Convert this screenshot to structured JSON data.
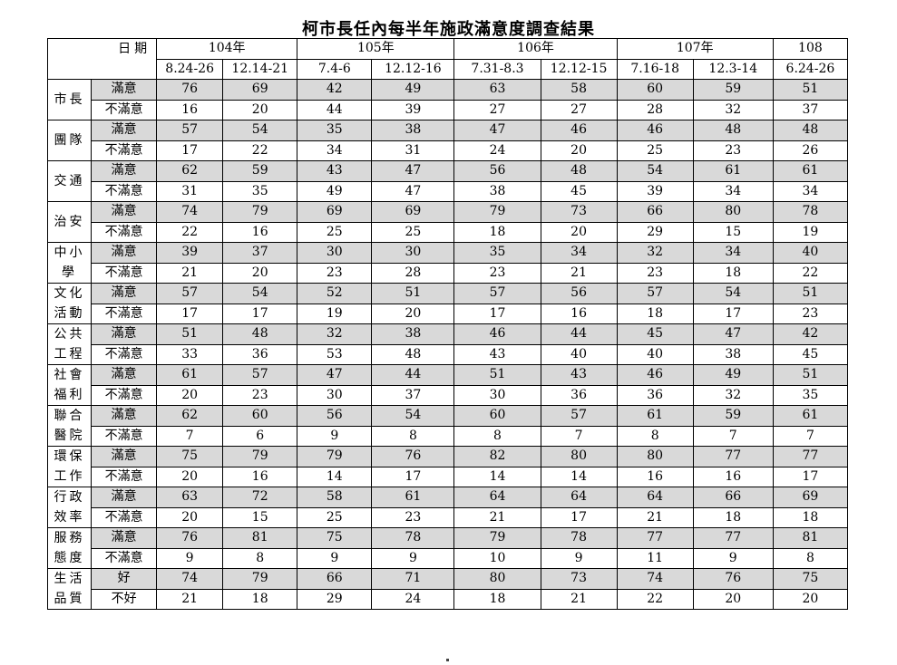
{
  "title": "柯市長任內每半年施政滿意度調查結果",
  "header": {
    "date_label": "日期",
    "years": [
      {
        "label": "104年",
        "span": 2
      },
      {
        "label": "105年",
        "span": 2
      },
      {
        "label": "106年",
        "span": 2
      },
      {
        "label": "107年",
        "span": 2
      },
      {
        "label": "108",
        "span": 1
      }
    ],
    "dates": [
      "8.24-26",
      "12.14-21",
      "7.4-6",
      "12.12-16",
      "7.31-8.3",
      "12.12-15",
      "7.16-18",
      "12.3-14",
      "6.24-26"
    ]
  },
  "categories": [
    {
      "name": "市長",
      "lines": [
        "市長"
      ],
      "rows": [
        {
          "label": "滿意",
          "values": [
            76,
            69,
            42,
            49,
            63,
            58,
            60,
            59,
            51
          ]
        },
        {
          "label": "不滿意",
          "values": [
            16,
            20,
            44,
            39,
            27,
            27,
            28,
            32,
            37
          ]
        }
      ]
    },
    {
      "name": "團隊",
      "lines": [
        "團隊"
      ],
      "rows": [
        {
          "label": "滿意",
          "values": [
            57,
            54,
            35,
            38,
            47,
            46,
            46,
            48,
            48
          ]
        },
        {
          "label": "不滿意",
          "values": [
            17,
            22,
            34,
            31,
            24,
            20,
            25,
            23,
            26
          ]
        }
      ]
    },
    {
      "name": "交通",
      "lines": [
        "交通"
      ],
      "rows": [
        {
          "label": "滿意",
          "values": [
            62,
            59,
            43,
            47,
            56,
            48,
            54,
            61,
            61
          ]
        },
        {
          "label": "不滿意",
          "values": [
            31,
            35,
            49,
            47,
            38,
            45,
            39,
            34,
            34
          ]
        }
      ]
    },
    {
      "name": "治安",
      "lines": [
        "治安"
      ],
      "rows": [
        {
          "label": "滿意",
          "values": [
            74,
            79,
            69,
            69,
            79,
            73,
            66,
            80,
            78
          ]
        },
        {
          "label": "不滿意",
          "values": [
            22,
            16,
            25,
            25,
            18,
            20,
            29,
            15,
            19
          ]
        }
      ]
    },
    {
      "name": "中小學",
      "lines": [
        "中小",
        "學"
      ],
      "rows": [
        {
          "label": "滿意",
          "values": [
            39,
            37,
            30,
            30,
            35,
            34,
            32,
            34,
            40
          ]
        },
        {
          "label": "不滿意",
          "values": [
            21,
            20,
            23,
            28,
            23,
            21,
            23,
            18,
            22
          ]
        }
      ]
    },
    {
      "name": "文化活動",
      "lines": [
        "文化",
        "活動"
      ],
      "rows": [
        {
          "label": "滿意",
          "values": [
            57,
            54,
            52,
            51,
            57,
            56,
            57,
            54,
            51
          ]
        },
        {
          "label": "不滿意",
          "values": [
            17,
            17,
            19,
            20,
            17,
            16,
            18,
            17,
            23
          ]
        }
      ]
    },
    {
      "name": "公共工程",
      "lines": [
        "公共",
        "工程"
      ],
      "rows": [
        {
          "label": "滿意",
          "values": [
            51,
            48,
            32,
            38,
            46,
            44,
            45,
            47,
            42
          ]
        },
        {
          "label": "不滿意",
          "values": [
            33,
            36,
            53,
            48,
            43,
            40,
            40,
            38,
            45
          ]
        }
      ]
    },
    {
      "name": "社會福利",
      "lines": [
        "社會",
        "福利"
      ],
      "rows": [
        {
          "label": "滿意",
          "values": [
            61,
            57,
            47,
            44,
            51,
            43,
            46,
            49,
            51
          ]
        },
        {
          "label": "不滿意",
          "values": [
            20,
            23,
            30,
            37,
            30,
            36,
            36,
            32,
            35
          ]
        }
      ]
    },
    {
      "name": "聯合醫院",
      "lines": [
        "聯合",
        "醫院"
      ],
      "rows": [
        {
          "label": "滿意",
          "values": [
            62,
            60,
            56,
            54,
            60,
            57,
            61,
            59,
            61
          ]
        },
        {
          "label": "不滿意",
          "values": [
            7,
            6,
            9,
            8,
            8,
            7,
            8,
            7,
            7
          ]
        }
      ]
    },
    {
      "name": "環保工作",
      "lines": [
        "環保",
        "工作"
      ],
      "rows": [
        {
          "label": "滿意",
          "values": [
            75,
            79,
            79,
            76,
            82,
            80,
            80,
            77,
            77
          ]
        },
        {
          "label": "不滿意",
          "values": [
            20,
            16,
            14,
            17,
            14,
            14,
            16,
            16,
            17
          ]
        }
      ]
    },
    {
      "name": "行政效率",
      "lines": [
        "行政",
        "效率"
      ],
      "rows": [
        {
          "label": "滿意",
          "values": [
            63,
            72,
            58,
            61,
            64,
            64,
            64,
            66,
            69
          ]
        },
        {
          "label": "不滿意",
          "values": [
            20,
            15,
            25,
            23,
            21,
            17,
            21,
            18,
            18
          ]
        }
      ]
    },
    {
      "name": "服務態度",
      "lines": [
        "服務",
        "態度"
      ],
      "rows": [
        {
          "label": "滿意",
          "values": [
            76,
            81,
            75,
            78,
            79,
            78,
            77,
            77,
            81
          ]
        },
        {
          "label": "不滿意",
          "values": [
            9,
            8,
            9,
            9,
            10,
            9,
            11,
            9,
            8
          ]
        }
      ]
    },
    {
      "name": "生活品質",
      "lines": [
        "生活",
        "品質"
      ],
      "rows": [
        {
          "label": "好",
          "values": [
            74,
            79,
            66,
            71,
            80,
            73,
            74,
            76,
            75
          ]
        },
        {
          "label": "不好",
          "values": [
            21,
            18,
            29,
            24,
            18,
            21,
            22,
            20,
            20
          ]
        }
      ]
    }
  ],
  "colors": {
    "shaded_row": "#d9d9d9",
    "border": "#000000"
  }
}
